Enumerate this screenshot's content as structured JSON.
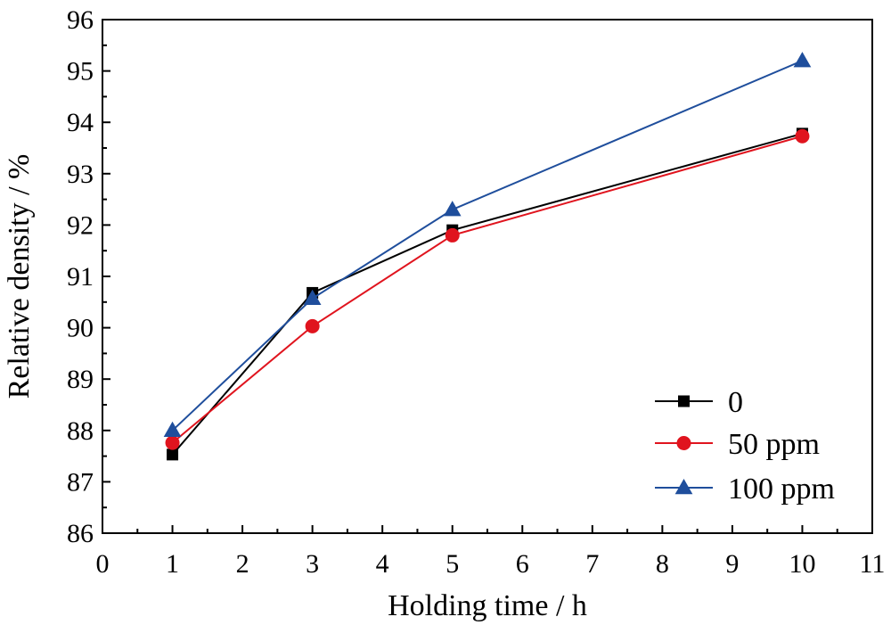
{
  "chart_data": {
    "type": "line",
    "xlabel": "Holding time / h",
    "ylabel": "Relative density / %",
    "xlim": [
      0,
      11
    ],
    "ylim": [
      86,
      96
    ],
    "x_ticks": [
      0,
      1,
      2,
      3,
      4,
      5,
      6,
      7,
      8,
      9,
      10,
      11
    ],
    "y_ticks": [
      86,
      87,
      88,
      89,
      90,
      91,
      92,
      93,
      94,
      95,
      96
    ],
    "grid": false,
    "legend_position": "bottom-right",
    "series": [
      {
        "name": "0",
        "color": "#000000",
        "marker": "square",
        "x": [
          1,
          3,
          5,
          10
        ],
        "y": [
          87.53,
          90.68,
          91.9,
          93.78
        ]
      },
      {
        "name": "50 ppm",
        "color": "#e0141e",
        "marker": "circle",
        "x": [
          1,
          3,
          5,
          10
        ],
        "y": [
          87.76,
          90.03,
          91.8,
          93.73
        ]
      },
      {
        "name": "100 ppm",
        "color": "#1f4e9c",
        "marker": "triangle",
        "x": [
          1,
          3,
          5,
          10
        ],
        "y": [
          88.0,
          90.57,
          92.3,
          95.2
        ]
      }
    ]
  }
}
